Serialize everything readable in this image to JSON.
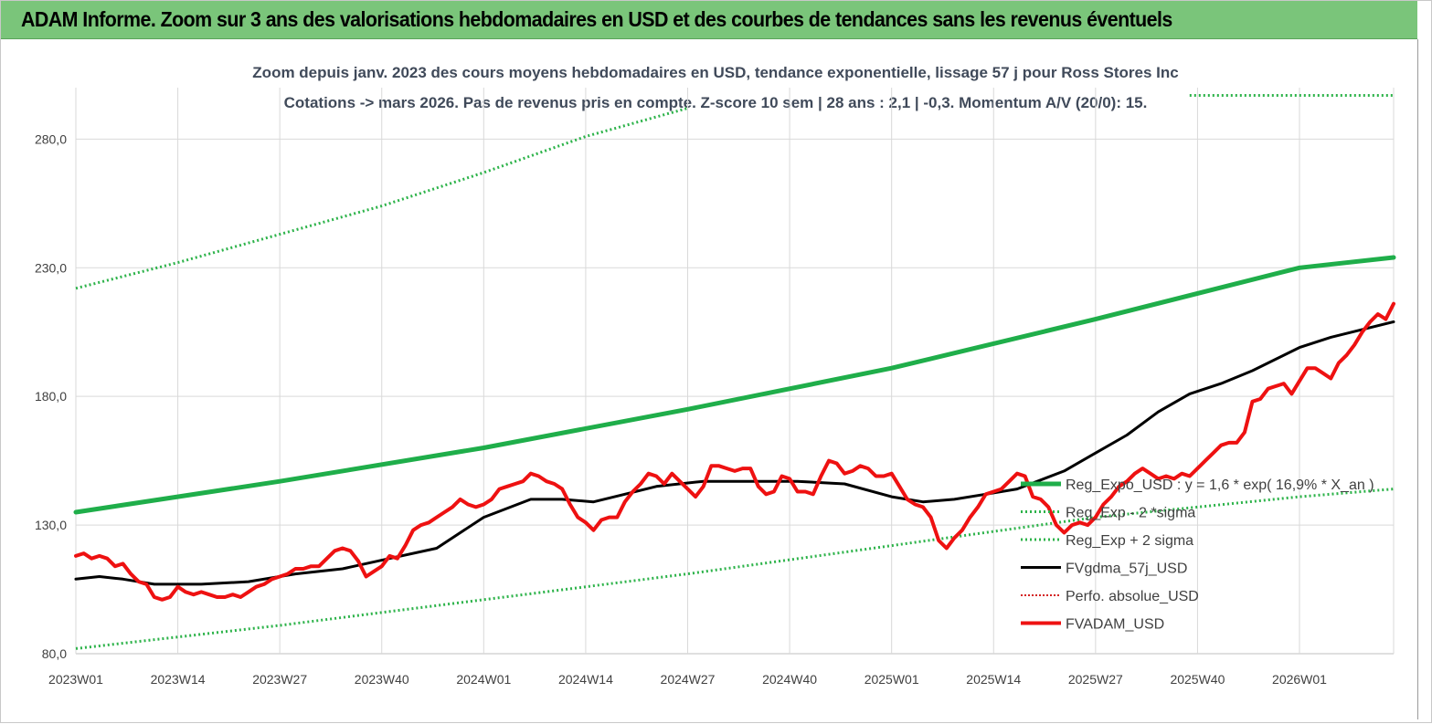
{
  "banner": {
    "title": "ADAM Informe. Zoom sur 3 ans des valorisations hebdomadaires en USD et des courbes de tendances sans les revenus éventuels"
  },
  "chart_data": {
    "type": "line",
    "title_line1": "Zoom depuis janv. 2023 des cours moyens hebdomadaires en USD, tendance exponentielle, lissage 57 j pour Ross Stores Inc",
    "title_line2": "Cotations -> mars 2026. Pas de revenus pris en  compte. Z-score 10 sem  | 28 ans : 2,1  | -0,3. Momentum A/V (20/0): 15.",
    "ylim": [
      80,
      300
    ],
    "y_ticks": [
      "80,0",
      "130,0",
      "180,0",
      "230,0",
      "280,0"
    ],
    "x_ticks": [
      "2023W01",
      "2023W14",
      "2023W27",
      "2023W40",
      "2024W01",
      "2024W14",
      "2024W27",
      "2024W40",
      "2025W01",
      "2025W14",
      "2025W27",
      "2025W40",
      "2026W01"
    ],
    "grid": true,
    "legend_position": "right",
    "colors": {
      "reg": "#1fae4a",
      "band": "#2db34a",
      "smooth": "#000000",
      "perfo": "#d42020",
      "price": "#ee1111"
    },
    "series": [
      {
        "key": "reg",
        "name": "Reg_Expo_USD : y = 1,6 * exp( 16,9% *  X_an )",
        "style": "solid-thick",
        "points": [
          [
            0,
            135
          ],
          [
            26,
            147
          ],
          [
            52,
            160
          ],
          [
            78,
            175
          ],
          [
            104,
            191
          ],
          [
            130,
            210
          ],
          [
            156,
            230
          ],
          [
            168,
            234
          ]
        ]
      },
      {
        "key": "lower",
        "name": "Reg_Exp - 2 *sigma",
        "style": "dotted",
        "points": [
          [
            0,
            82
          ],
          [
            26,
            91
          ],
          [
            52,
            101
          ],
          [
            78,
            111
          ],
          [
            104,
            122
          ],
          [
            130,
            133
          ],
          [
            156,
            141
          ],
          [
            168,
            144
          ]
        ]
      },
      {
        "key": "upper",
        "name": "Reg_Exp + 2 sigma",
        "style": "dotted",
        "points": [
          [
            0,
            222
          ],
          [
            13,
            232
          ],
          [
            26,
            243
          ],
          [
            39,
            254
          ],
          [
            52,
            267
          ],
          [
            65,
            281
          ],
          [
            78,
            292
          ]
        ]
      },
      {
        "key": "upper_tail",
        "name": "",
        "style": "dotted",
        "points": [
          [
            142,
            297
          ],
          [
            168,
            297
          ]
        ]
      },
      {
        "key": "smooth",
        "name": "FVgdma_57j_USD",
        "style": "solid",
        "points": [
          [
            0,
            109
          ],
          [
            3,
            110
          ],
          [
            6,
            109
          ],
          [
            10,
            107
          ],
          [
            16,
            107
          ],
          [
            22,
            108
          ],
          [
            28,
            111
          ],
          [
            34,
            113
          ],
          [
            40,
            117
          ],
          [
            46,
            121
          ],
          [
            52,
            133
          ],
          [
            58,
            140
          ],
          [
            62,
            140
          ],
          [
            66,
            139
          ],
          [
            70,
            142
          ],
          [
            74,
            145
          ],
          [
            80,
            147
          ],
          [
            86,
            147
          ],
          [
            92,
            147
          ],
          [
            98,
            146
          ],
          [
            104,
            141
          ],
          [
            108,
            139
          ],
          [
            112,
            140
          ],
          [
            116,
            142
          ],
          [
            120,
            144
          ],
          [
            126,
            151
          ],
          [
            130,
            158
          ],
          [
            134,
            165
          ],
          [
            138,
            174
          ],
          [
            142,
            181
          ],
          [
            146,
            185
          ],
          [
            150,
            190
          ],
          [
            156,
            199
          ],
          [
            160,
            203
          ],
          [
            168,
            209
          ]
        ]
      },
      {
        "key": "perfo",
        "name": "Perfo. absolue_USD",
        "style": "dotted",
        "points": []
      },
      {
        "key": "price",
        "name": "FVADAM_USD",
        "style": "solid-thick",
        "points": [
          [
            0,
            118
          ],
          [
            1,
            119
          ],
          [
            2,
            117
          ],
          [
            3,
            118
          ],
          [
            4,
            117
          ],
          [
            5,
            114
          ],
          [
            6,
            115
          ],
          [
            7,
            111
          ],
          [
            8,
            108
          ],
          [
            9,
            107
          ],
          [
            10,
            102
          ],
          [
            11,
            101
          ],
          [
            12,
            102
          ],
          [
            13,
            106
          ],
          [
            14,
            104
          ],
          [
            15,
            103
          ],
          [
            16,
            104
          ],
          [
            17,
            103
          ],
          [
            18,
            102
          ],
          [
            19,
            102
          ],
          [
            20,
            103
          ],
          [
            21,
            102
          ],
          [
            22,
            104
          ],
          [
            23,
            106
          ],
          [
            24,
            107
          ],
          [
            25,
            109
          ],
          [
            26,
            110
          ],
          [
            27,
            111
          ],
          [
            28,
            113
          ],
          [
            29,
            113
          ],
          [
            30,
            114
          ],
          [
            31,
            114
          ],
          [
            32,
            117
          ],
          [
            33,
            120
          ],
          [
            34,
            121
          ],
          [
            35,
            120
          ],
          [
            36,
            116
          ],
          [
            37,
            110
          ],
          [
            38,
            112
          ],
          [
            39,
            114
          ],
          [
            40,
            118
          ],
          [
            41,
            117
          ],
          [
            42,
            122
          ],
          [
            43,
            128
          ],
          [
            44,
            130
          ],
          [
            45,
            131
          ],
          [
            46,
            133
          ],
          [
            47,
            135
          ],
          [
            48,
            137
          ],
          [
            49,
            140
          ],
          [
            50,
            138
          ],
          [
            51,
            137
          ],
          [
            52,
            138
          ],
          [
            53,
            140
          ],
          [
            54,
            144
          ],
          [
            55,
            145
          ],
          [
            56,
            146
          ],
          [
            57,
            147
          ],
          [
            58,
            150
          ],
          [
            59,
            149
          ],
          [
            60,
            147
          ],
          [
            61,
            146
          ],
          [
            62,
            144
          ],
          [
            63,
            138
          ],
          [
            64,
            133
          ],
          [
            65,
            131
          ],
          [
            66,
            128
          ],
          [
            67,
            132
          ],
          [
            68,
            133
          ],
          [
            69,
            133
          ],
          [
            70,
            139
          ],
          [
            71,
            143
          ],
          [
            72,
            146
          ],
          [
            73,
            150
          ],
          [
            74,
            149
          ],
          [
            75,
            146
          ],
          [
            76,
            150
          ],
          [
            77,
            147
          ],
          [
            78,
            144
          ],
          [
            79,
            141
          ],
          [
            80,
            145
          ],
          [
            81,
            153
          ],
          [
            82,
            153
          ],
          [
            83,
            152
          ],
          [
            84,
            151
          ],
          [
            85,
            152
          ],
          [
            86,
            152
          ],
          [
            87,
            145
          ],
          [
            88,
            142
          ],
          [
            89,
            143
          ],
          [
            90,
            149
          ],
          [
            91,
            148
          ],
          [
            92,
            143
          ],
          [
            93,
            143
          ],
          [
            94,
            142
          ],
          [
            95,
            149
          ],
          [
            96,
            155
          ],
          [
            97,
            154
          ],
          [
            98,
            150
          ],
          [
            99,
            151
          ],
          [
            100,
            153
          ],
          [
            101,
            152
          ],
          [
            102,
            149
          ],
          [
            103,
            149
          ],
          [
            104,
            150
          ],
          [
            105,
            145
          ],
          [
            106,
            140
          ],
          [
            107,
            138
          ],
          [
            108,
            137
          ],
          [
            109,
            133
          ],
          [
            110,
            124
          ],
          [
            111,
            121
          ],
          [
            112,
            125
          ],
          [
            113,
            128
          ],
          [
            114,
            133
          ],
          [
            115,
            137
          ],
          [
            116,
            142
          ],
          [
            117,
            143
          ],
          [
            118,
            144
          ],
          [
            119,
            147
          ],
          [
            120,
            150
          ],
          [
            121,
            149
          ],
          [
            122,
            141
          ],
          [
            123,
            140
          ],
          [
            124,
            137
          ],
          [
            125,
            130
          ],
          [
            126,
            127
          ],
          [
            127,
            130
          ],
          [
            128,
            131
          ],
          [
            129,
            130
          ],
          [
            130,
            133
          ],
          [
            131,
            138
          ],
          [
            132,
            141
          ],
          [
            133,
            145
          ],
          [
            134,
            147
          ],
          [
            135,
            150
          ],
          [
            136,
            152
          ],
          [
            137,
            150
          ],
          [
            138,
            148
          ],
          [
            139,
            149
          ],
          [
            140,
            148
          ],
          [
            141,
            150
          ],
          [
            142,
            149
          ],
          [
            143,
            152
          ],
          [
            144,
            155
          ],
          [
            145,
            158
          ],
          [
            146,
            161
          ],
          [
            147,
            162
          ],
          [
            148,
            162
          ],
          [
            149,
            166
          ],
          [
            150,
            178
          ],
          [
            151,
            179
          ],
          [
            152,
            183
          ],
          [
            153,
            184
          ],
          [
            154,
            185
          ],
          [
            155,
            181
          ],
          [
            156,
            186
          ],
          [
            157,
            191
          ],
          [
            158,
            191
          ],
          [
            159,
            189
          ],
          [
            160,
            187
          ],
          [
            161,
            193
          ],
          [
            162,
            196
          ],
          [
            163,
            200
          ],
          [
            164,
            205
          ],
          [
            165,
            209
          ],
          [
            166,
            212
          ],
          [
            167,
            210
          ],
          [
            168,
            216
          ]
        ]
      }
    ]
  }
}
